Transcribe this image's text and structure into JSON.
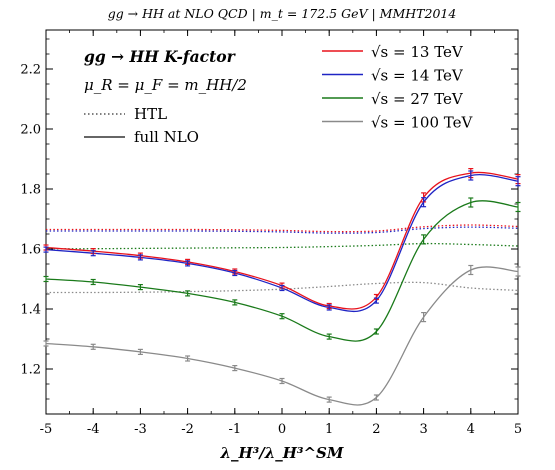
{
  "chart_data": {
    "type": "line",
    "title": "gg → HH at NLO QCD | m_t = 172.5 GeV | MMHT2014",
    "xlabel": "λ_H³/λ_H³^SM",
    "ylabel": "",
    "xlim": [
      -5,
      5
    ],
    "ylim": [
      1.05,
      2.33
    ],
    "x_ticks": [
      -5,
      -4,
      -3,
      -2,
      -1,
      0,
      1,
      2,
      3,
      4,
      5
    ],
    "y_ticks": [
      1.2,
      1.4,
      1.6,
      1.8,
      2.0,
      2.2
    ],
    "grid": false,
    "legend": {
      "placement": "top",
      "heading": "gg → HH K-factor",
      "scale_label": "μ_R = μ_F = m_HH/2",
      "style_entries": [
        {
          "label": "HTL",
          "style": "dotted"
        },
        {
          "label": "full NLO",
          "style": "solid"
        }
      ]
    },
    "series": [
      {
        "name": "√s = 13 TeV",
        "color": "#e8121c",
        "x": [
          -5,
          -4,
          -3,
          -2,
          -1,
          0,
          1,
          2,
          3,
          4,
          5
        ],
        "full_nlo": [
          1.605,
          1.593,
          1.578,
          1.557,
          1.525,
          1.478,
          1.41,
          1.44,
          1.772,
          1.853,
          1.833
        ],
        "htl": [
          1.665,
          1.665,
          1.665,
          1.665,
          1.664,
          1.662,
          1.658,
          1.66,
          1.674,
          1.68,
          1.675
        ]
      },
      {
        "name": "√s = 14 TeV",
        "color": "#1f24c4",
        "x": [
          -5,
          -4,
          -3,
          -2,
          -1,
          0,
          1,
          2,
          3,
          4,
          5
        ],
        "full_nlo": [
          1.598,
          1.586,
          1.572,
          1.552,
          1.52,
          1.47,
          1.405,
          1.428,
          1.756,
          1.845,
          1.826
        ],
        "htl": [
          1.66,
          1.66,
          1.66,
          1.66,
          1.659,
          1.657,
          1.653,
          1.655,
          1.668,
          1.673,
          1.669
        ]
      },
      {
        "name": "√s = 27 TeV",
        "color": "#1a7a1a",
        "x": [
          -5,
          -4,
          -3,
          -2,
          -1,
          0,
          1,
          2,
          3,
          4,
          5
        ],
        "full_nlo": [
          1.5,
          1.49,
          1.473,
          1.452,
          1.422,
          1.376,
          1.308,
          1.325,
          1.632,
          1.755,
          1.74
        ],
        "htl": [
          1.601,
          1.601,
          1.602,
          1.603,
          1.604,
          1.605,
          1.608,
          1.612,
          1.618,
          1.615,
          1.61
        ]
      },
      {
        "name": "√s = 100 TeV",
        "color": "#8a8a8a",
        "x": [
          -5,
          -4,
          -3,
          -2,
          -1,
          0,
          1,
          2,
          3,
          4,
          5
        ],
        "full_nlo": [
          1.285,
          1.274,
          1.257,
          1.235,
          1.203,
          1.16,
          1.098,
          1.105,
          1.373,
          1.53,
          1.525
        ],
        "htl": [
          1.455,
          1.455,
          1.456,
          1.458,
          1.461,
          1.466,
          1.475,
          1.485,
          1.488,
          1.47,
          1.462
        ]
      }
    ]
  }
}
